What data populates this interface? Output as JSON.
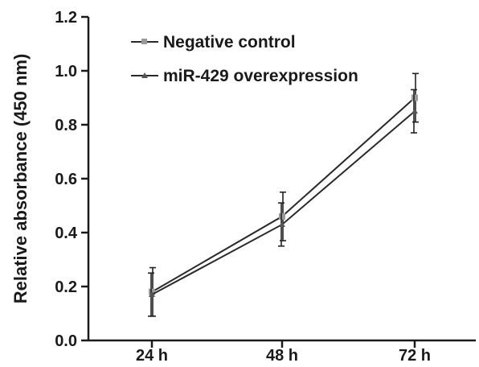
{
  "chart_data": {
    "type": "line",
    "categories": [
      "24 h",
      "48 h",
      "72 h"
    ],
    "ylabel": "Relative absorbance (450 nm)",
    "xlabel": "",
    "ylim": [
      0.0,
      1.2
    ],
    "yticks": [
      "0.0",
      "0.2",
      "0.4",
      "0.6",
      "0.8",
      "1.0",
      "1.2"
    ],
    "legend_position": "top-left",
    "grid": false,
    "series": [
      {
        "name": "Negative control",
        "values": [
          0.18,
          0.46,
          0.9
        ],
        "errors": [
          0.09,
          0.09,
          0.09
        ],
        "marker": "square",
        "color": "#9a9a9a"
      },
      {
        "name": "miR-429 overexpression",
        "values": [
          0.17,
          0.43,
          0.85
        ],
        "errors": [
          0.08,
          0.08,
          0.08
        ],
        "marker": "triangle",
        "color": "#555555"
      }
    ],
    "line_color": "#2a2a2a"
  }
}
